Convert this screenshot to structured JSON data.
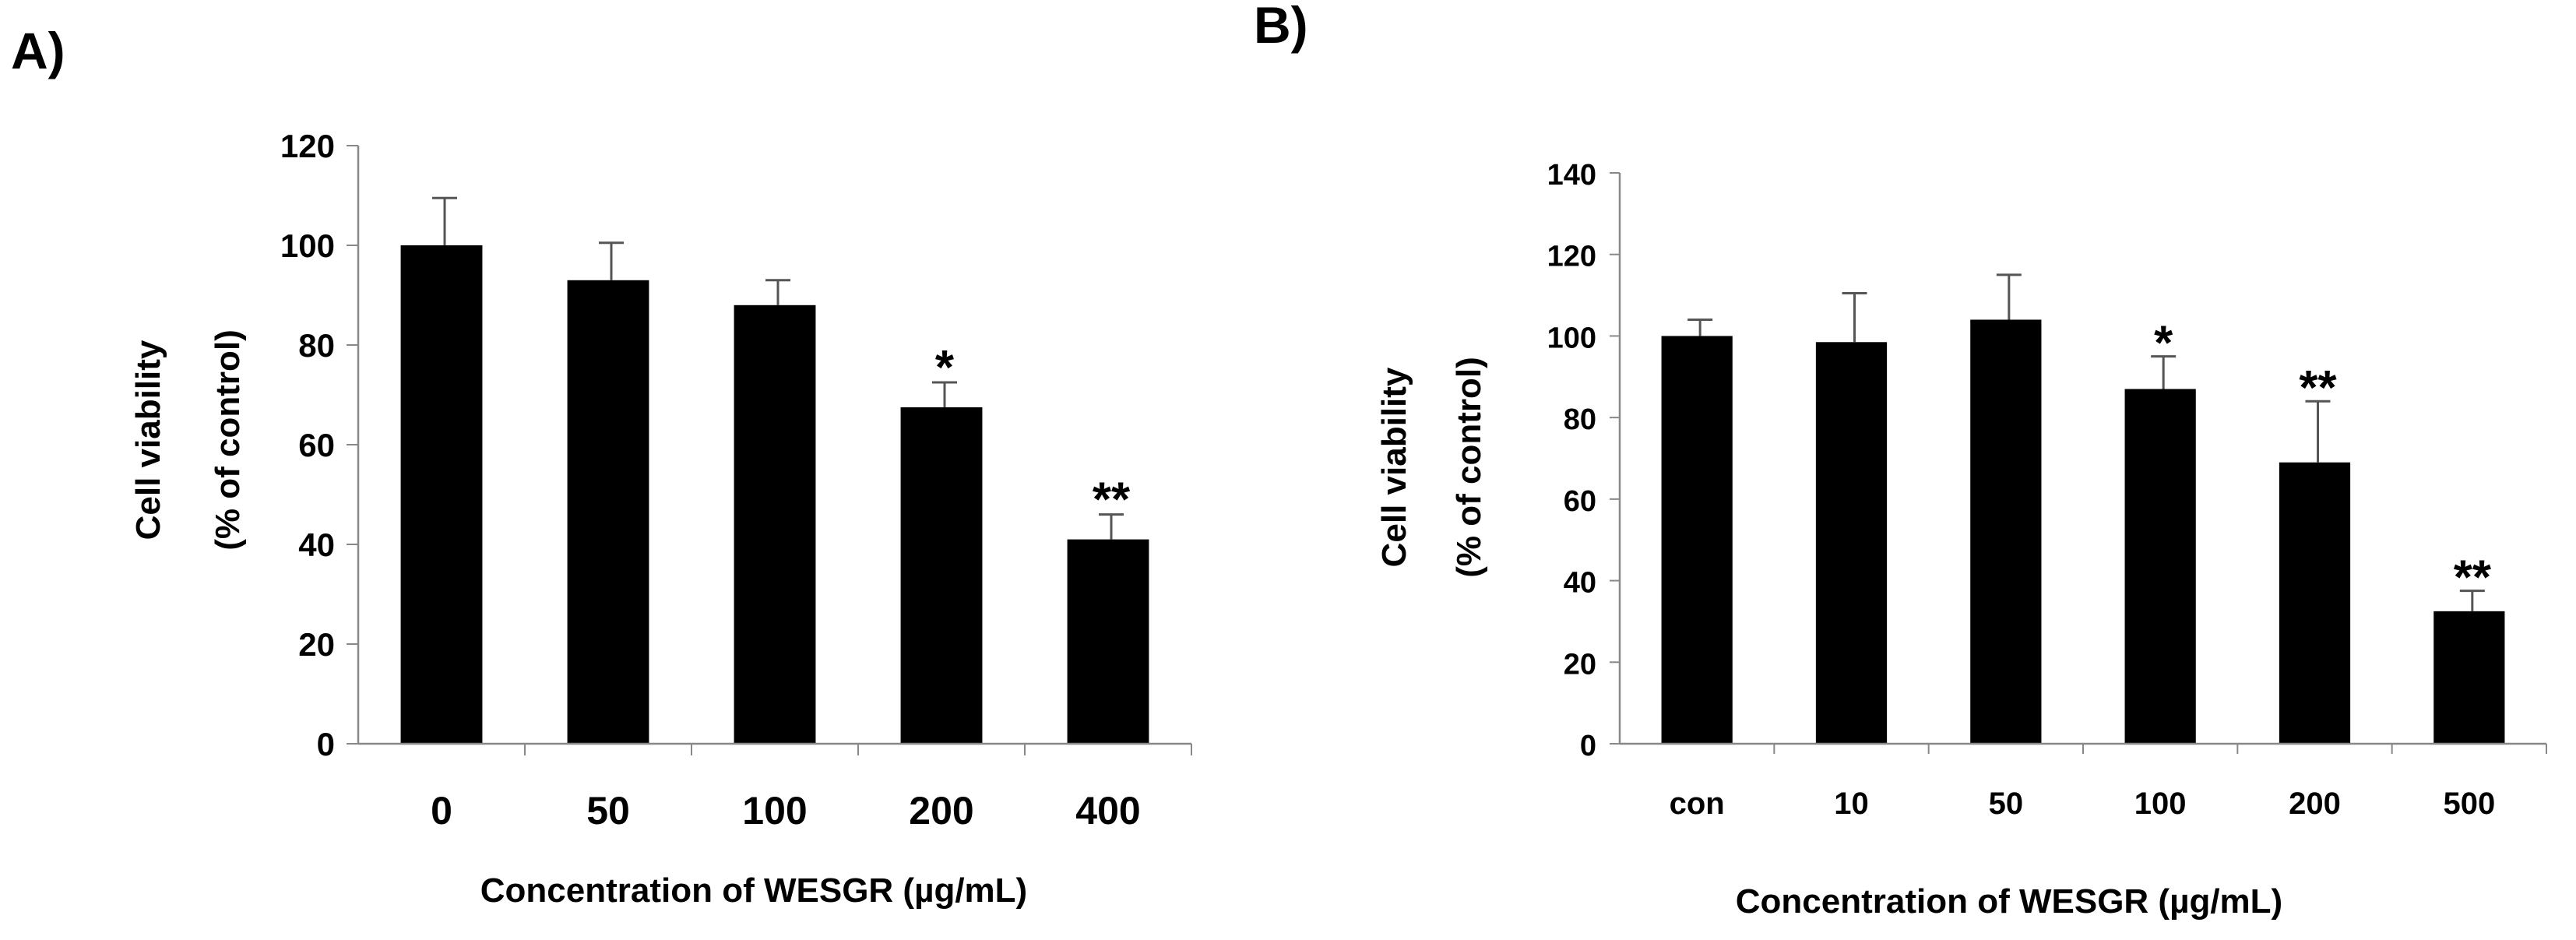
{
  "panels": [
    {
      "letter": "A)",
      "chart_data": {
        "type": "bar",
        "categories": [
          "0",
          "50",
          "100",
          "200",
          "400"
        ],
        "values": [
          100,
          93,
          88,
          67.5,
          41
        ],
        "errors": [
          9.5,
          7.5,
          5,
          5,
          5
        ],
        "significance": [
          "",
          "",
          "",
          "*",
          "**"
        ],
        "ylim": [
          0,
          120
        ],
        "yticks": [
          "0",
          "20",
          "40",
          "60",
          "80",
          "100",
          "120"
        ],
        "xlabel": "Concentration of WESGR (µg/mL)",
        "ylabel_line1": "Cell viability",
        "ylabel_line2": "(% of control)",
        "bar_color": "#000000"
      }
    },
    {
      "letter": "B)",
      "chart_data": {
        "type": "bar",
        "categories": [
          "con",
          "10",
          "50",
          "100",
          "200",
          "500"
        ],
        "values": [
          100,
          98.5,
          104,
          87,
          69,
          32.5
        ],
        "errors": [
          4,
          12,
          11,
          8,
          15,
          5
        ],
        "significance": [
          "",
          "",
          "",
          "*",
          "**",
          "**"
        ],
        "ylim": [
          0,
          140
        ],
        "yticks": [
          "0",
          "20",
          "40",
          "60",
          "80",
          "100",
          "120",
          "140"
        ],
        "xlabel": "Concentration of WESGR (µg/mL)",
        "ylabel_line1": "Cell viability",
        "ylabel_line2": "(% of control)",
        "bar_color": "#000000"
      }
    }
  ]
}
